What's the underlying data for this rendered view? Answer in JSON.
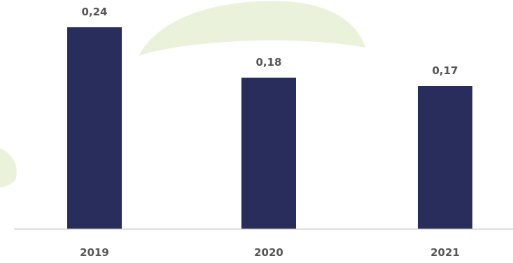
{
  "chart_data": {
    "type": "bar",
    "categories": [
      "2019",
      "2020",
      "2021"
    ],
    "values": [
      0.24,
      0.18,
      0.17
    ],
    "value_labels": [
      "0,24",
      "0,18",
      "0,17"
    ],
    "title": "",
    "xlabel": "",
    "ylabel": "",
    "ylim": [
      0,
      0.24
    ],
    "grid": false,
    "legend": "none",
    "colors": {
      "bar": "#282d5c",
      "label_text": "#555555",
      "axis": "#c8c8c8",
      "leaf_light": "#eaf2dc",
      "leaf_mid": "#dde9c8"
    }
  }
}
